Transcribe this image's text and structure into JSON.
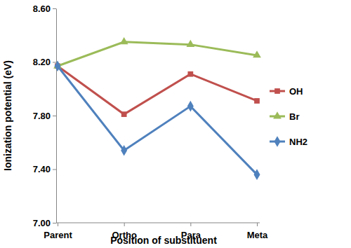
{
  "chart_data": {
    "type": "line",
    "x_label": "Position of substituent",
    "y_label": "Ionization potential (eV)",
    "categories": [
      "Parent",
      "Ortho",
      "Para",
      "Meta"
    ],
    "series": [
      {
        "name": "OH",
        "color": "#c0504d",
        "marker": "square",
        "values": [
          8.17,
          7.81,
          8.11,
          7.91
        ]
      },
      {
        "name": "Br",
        "color": "#9bbb59",
        "marker": "triangle",
        "values": [
          8.17,
          8.35,
          8.33,
          8.25
        ]
      },
      {
        "name": "NH2",
        "color": "#4f81bd",
        "marker": "diamond",
        "values": [
          8.17,
          7.54,
          7.87,
          7.36
        ]
      }
    ],
    "ylim": [
      7.0,
      8.6
    ],
    "yticks": [
      {
        "value": 7.0,
        "label": "7.00"
      },
      {
        "value": 7.4,
        "label": "7.40"
      },
      {
        "value": 7.8,
        "label": "7.80"
      },
      {
        "value": 8.2,
        "label": "8.20"
      },
      {
        "value": 8.6,
        "label": "8.60"
      }
    ],
    "grid": false,
    "legend": "right"
  }
}
